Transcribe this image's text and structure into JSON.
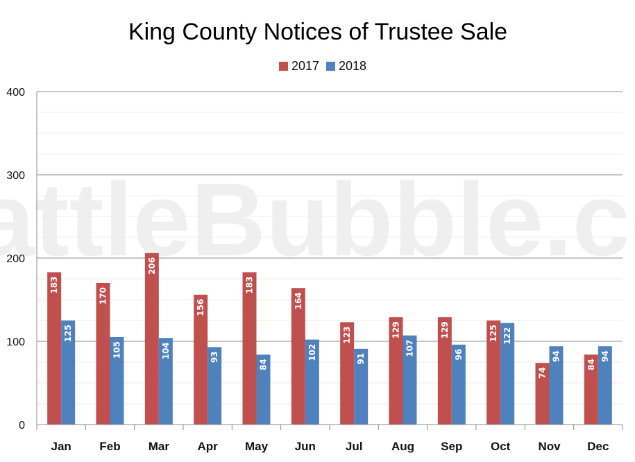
{
  "chart_data": {
    "type": "bar",
    "title": "King County Notices of Trustee Sale",
    "watermark": "SeattleBubble.com",
    "categories": [
      "Jan",
      "Feb",
      "Mar",
      "Apr",
      "May",
      "Jun",
      "Jul",
      "Aug",
      "Sep",
      "Oct",
      "Nov",
      "Dec"
    ],
    "series": [
      {
        "name": "2017",
        "color": "#c0504d",
        "values": [
          183,
          170,
          206,
          156,
          183,
          164,
          123,
          129,
          129,
          125,
          74,
          84
        ]
      },
      {
        "name": "2018",
        "color": "#4f81bd",
        "values": [
          125,
          105,
          104,
          93,
          84,
          102,
          91,
          107,
          96,
          122,
          94,
          94
        ]
      }
    ],
    "ylim": [
      0,
      400
    ],
    "yticks": [
      0,
      100,
      200,
      300,
      400
    ],
    "grid": true,
    "legend": "top-center",
    "xlabel": "",
    "ylabel": ""
  }
}
